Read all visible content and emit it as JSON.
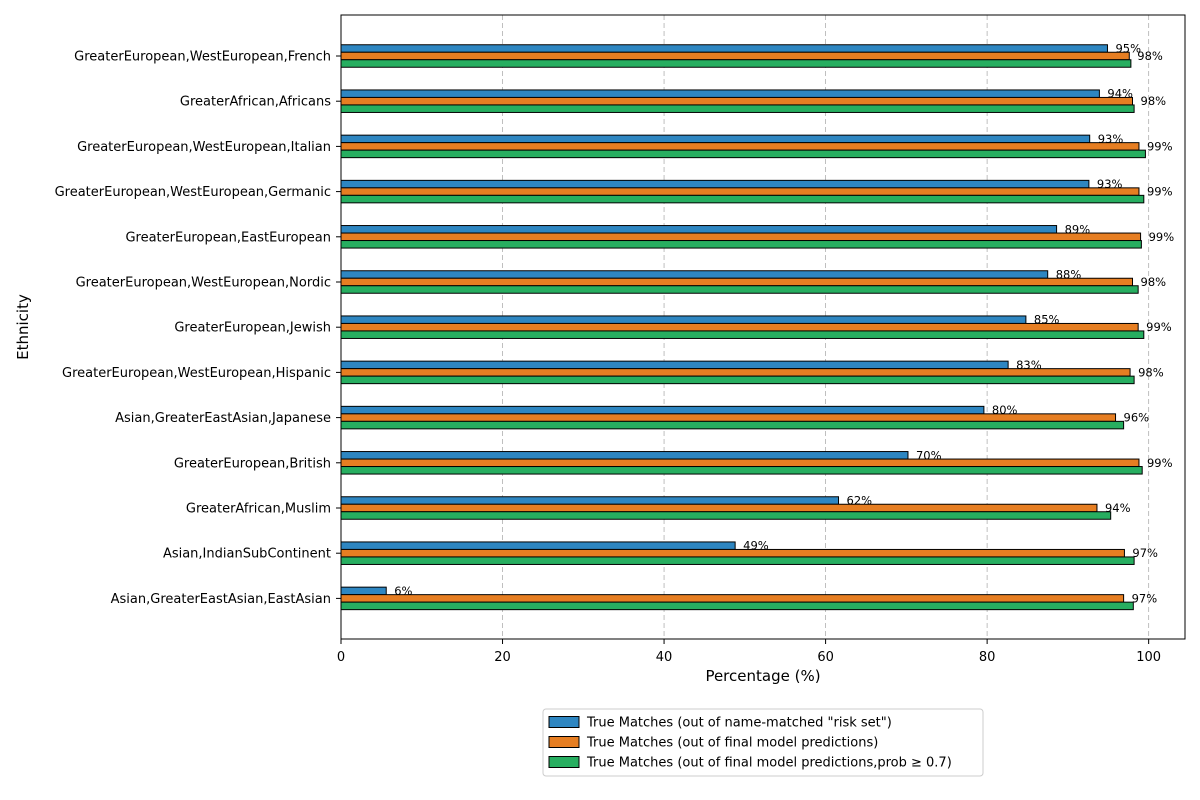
{
  "chart_data": {
    "type": "bar",
    "orientation": "horizontal",
    "title": "",
    "xlabel": "Percentage (%)",
    "ylabel": "Ethnicity",
    "xlim": [
      0,
      104.5
    ],
    "xticks": [
      0,
      20,
      40,
      60,
      80,
      100
    ],
    "grid": "x-dashed",
    "legend_position": "bottom-center",
    "categories": [
      "GreaterEuropean,WestEuropean,French",
      "GreaterAfrican,Africans",
      "GreaterEuropean,WestEuropean,Italian",
      "GreaterEuropean,WestEuropean,Germanic",
      "GreaterEuropean,EastEuropean",
      "GreaterEuropean,WestEuropean,Nordic",
      "GreaterEuropean,Jewish",
      "GreaterEuropean,WestEuropean,Hispanic",
      "Asian,GreaterEastAsian,Japanese",
      "GreaterEuropean,British",
      "GreaterAfrican,Muslim",
      "Asian,IndianSubContinent",
      "Asian,GreaterEastAsian,EastAsian"
    ],
    "series": [
      {
        "name": "True Matches (out of name-matched \"risk set\")",
        "color": "#2e86c1",
        "values": [
          94.9,
          93.9,
          92.7,
          92.6,
          88.6,
          87.5,
          84.8,
          82.6,
          79.6,
          70.2,
          61.6,
          48.8,
          5.6
        ],
        "labels": [
          "95%",
          "94%",
          "93%",
          "93%",
          "89%",
          "88%",
          "85%",
          "83%",
          "80%",
          "70%",
          "62%",
          "49%",
          "6%"
        ]
      },
      {
        "name": "True Matches (out of final model predictions)",
        "color": "#e67e22",
        "values": [
          97.6,
          98.0,
          98.8,
          98.8,
          99.0,
          98.0,
          98.7,
          97.7,
          95.9,
          98.8,
          93.6,
          97.0,
          96.9
        ],
        "labels": [
          "98%",
          "98%",
          "99%",
          "99%",
          "99%",
          "98%",
          "99%",
          "98%",
          "96%",
          "99%",
          "94%",
          "97%",
          "97%"
        ]
      },
      {
        "name": "True Matches (out of final model predictions,prob ≥ 0.7)",
        "color": "#27ae60",
        "values": [
          97.8,
          98.2,
          99.6,
          99.4,
          99.1,
          98.7,
          99.4,
          98.2,
          96.9,
          99.2,
          95.3,
          98.2,
          98.1
        ]
      }
    ]
  }
}
